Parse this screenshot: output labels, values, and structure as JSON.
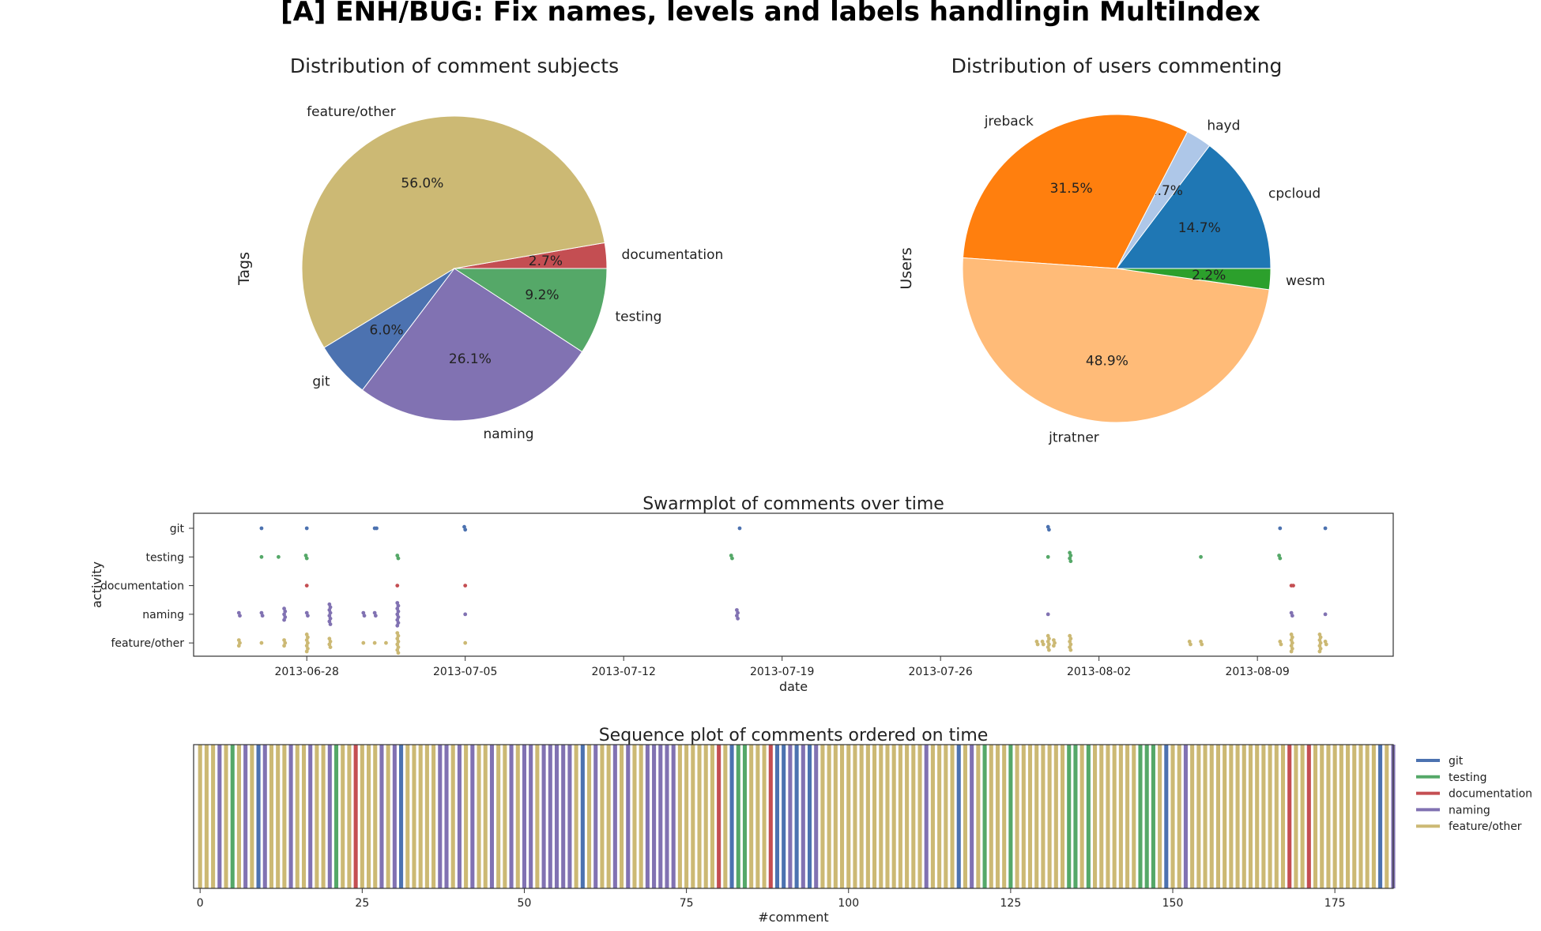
{
  "figure_title": "[A] ENH/BUG: Fix names, levels and labels handlingin MultiIndex",
  "chart_data": [
    {
      "type": "pie",
      "title": "Distribution of comment subjects",
      "ylabel": "Tags",
      "start_angle_deg": 0,
      "slices": [
        {
          "label": "documentation",
          "value": 2.7,
          "pct_label": "2.7%",
          "color": "#c44e52"
        },
        {
          "label": "feature/other",
          "value": 56.0,
          "pct_label": "56.0%",
          "color": "#ccb974"
        },
        {
          "label": "git",
          "value": 6.0,
          "pct_label": "6.0%",
          "color": "#4c72b0"
        },
        {
          "label": "naming",
          "value": 26.1,
          "pct_label": "26.1%",
          "color": "#8172b2"
        },
        {
          "label": "testing",
          "value": 9.2,
          "pct_label": "9.2%",
          "color": "#55a868"
        }
      ]
    },
    {
      "type": "pie",
      "title": "Distribution of users commenting",
      "ylabel": "Users",
      "start_angle_deg": 0,
      "slices": [
        {
          "label": "cpcloud",
          "value": 14.7,
          "pct_label": "14.7%",
          "color": "#1f77b4"
        },
        {
          "label": "hayd",
          "value": 2.7,
          "pct_label": "2.7%",
          "color": "#aec7e8"
        },
        {
          "label": "jreback",
          "value": 31.5,
          "pct_label": "31.5%",
          "color": "#ff7f0e"
        },
        {
          "label": "jtratner",
          "value": 48.9,
          "pct_label": "48.9%",
          "color": "#ffbb78"
        },
        {
          "label": "wesm",
          "value": 2.2,
          "pct_label": "2.2%",
          "color": "#2ca02c"
        }
      ]
    },
    {
      "type": "scatter",
      "title": "Swarmplot of comments over time",
      "xlabel": "date",
      "ylabel": "activity",
      "categories": [
        "git",
        "testing",
        "documentation",
        "naming",
        "feature/other"
      ],
      "colors": {
        "git": "#4c72b0",
        "testing": "#55a868",
        "documentation": "#c44e52",
        "naming": "#8172b2",
        "feature/other": "#ccb974"
      },
      "xlim": [
        "2013-06-23",
        "2013-08-15"
      ],
      "xticks": [
        "2013-06-28",
        "2013-07-05",
        "2013-07-12",
        "2013-07-19",
        "2013-07-26",
        "2013-08-02",
        "2013-08-09"
      ],
      "points": {
        "git": [
          "2013-06-26T00:00",
          "2013-06-28T00:00",
          "2013-07-01T00:00",
          "2013-07-01T02:00",
          "2013-07-04T23:00",
          "2013-07-04T23:00",
          "2013-07-17T03:00",
          "2013-07-30T18:00",
          "2013-07-30T18:00",
          "2013-08-10T00:00",
          "2013-08-12T00:00"
        ],
        "testing": [
          "2013-06-26T00:00",
          "2013-06-26T18:00",
          "2013-06-27T23:00",
          "2013-06-27T23:00",
          "2013-07-02T00:00",
          "2013-07-02T00:00",
          "2013-07-16T18:00",
          "2013-07-16T18:00",
          "2013-07-30T18:00",
          "2013-07-31T17:00",
          "2013-07-31T17:00",
          "2013-07-31T17:00",
          "2013-07-31T17:00",
          "2013-08-06T12:00",
          "2013-08-09T23:00",
          "2013-08-09T23:00"
        ],
        "documentation": [
          "2013-06-28T00:00",
          "2013-07-02T00:00",
          "2013-07-05T00:00",
          "2013-08-10T12:00",
          "2013-08-10T14:00"
        ],
        "naming": [
          "2013-06-25T00:00",
          "2013-06-25T00:00",
          "2013-06-26T00:00",
          "2013-06-26T00:00",
          "2013-06-27T00:00",
          "2013-06-27T00:00",
          "2013-06-27T00:00",
          "2013-06-27T00:00",
          "2013-06-27T00:00",
          "2013-06-28T00:00",
          "2013-06-28T00:00",
          "2013-06-29T00:00",
          "2013-06-29T00:00",
          "2013-06-29T00:00",
          "2013-06-29T00:00",
          "2013-06-29T00:00",
          "2013-06-29T00:00",
          "2013-06-29T00:00",
          "2013-06-29T00:00",
          "2013-06-30T12:00",
          "2013-06-30T12:00",
          "2013-07-01T00:00",
          "2013-07-01T00:00",
          "2013-07-02T00:00",
          "2013-07-02T00:00",
          "2013-07-02T00:00",
          "2013-07-02T00:00",
          "2013-07-02T00:00",
          "2013-07-02T00:00",
          "2013-07-02T00:00",
          "2013-07-02T00:00",
          "2013-07-02T00:00",
          "2013-07-05T00:00",
          "2013-07-17T00:00",
          "2013-07-17T00:00",
          "2013-07-17T00:00",
          "2013-07-17T00:00",
          "2013-07-30T18:00",
          "2013-08-10T12:00",
          "2013-08-10T12:00",
          "2013-08-12T00:00"
        ],
        "feature/other": [
          "2013-06-25T00:00",
          "2013-06-25T00:00",
          "2013-06-25T00:00",
          "2013-06-26T00:00",
          "2013-06-27T00:00",
          "2013-06-27T00:00",
          "2013-06-27T00:00",
          "2013-06-28T00:00",
          "2013-06-28T00:00",
          "2013-06-28T00:00",
          "2013-06-28T00:00",
          "2013-06-28T00:00",
          "2013-06-28T00:00",
          "2013-06-28T00:00",
          "2013-06-29T00:00",
          "2013-06-29T00:00",
          "2013-06-29T00:00",
          "2013-06-29T00:00",
          "2013-06-30T12:00",
          "2013-07-01T00:00",
          "2013-07-01T12:00",
          "2013-07-02T00:00",
          "2013-07-02T00:00",
          "2013-07-02T00:00",
          "2013-07-02T00:00",
          "2013-07-02T00:00",
          "2013-07-02T00:00",
          "2013-07-02T00:00",
          "2013-07-02T00:00",
          "2013-07-05T00:00",
          "2013-07-30T06:00",
          "2013-07-30T06:00",
          "2013-07-30T12:00",
          "2013-07-30T12:00",
          "2013-07-30T18:00",
          "2013-07-30T18:00",
          "2013-07-30T18:00",
          "2013-07-30T18:00",
          "2013-07-30T18:00",
          "2013-07-30T18:00",
          "2013-07-31T00:00",
          "2013-07-31T00:00",
          "2013-07-31T00:00",
          "2013-07-31T17:00",
          "2013-07-31T17:00",
          "2013-07-31T17:00",
          "2013-07-31T17:00",
          "2013-07-31T17:00",
          "2013-07-31T17:00",
          "2013-08-06T00:00",
          "2013-08-06T00:00",
          "2013-08-06T12:00",
          "2013-08-06T12:00",
          "2013-08-10T00:00",
          "2013-08-10T00:00",
          "2013-08-10T12:00",
          "2013-08-10T12:00",
          "2013-08-10T12:00",
          "2013-08-10T12:00",
          "2013-08-10T12:00",
          "2013-08-10T12:00",
          "2013-08-10T12:00",
          "2013-08-11T18:00",
          "2013-08-11T18:00",
          "2013-08-11T18:00",
          "2013-08-11T18:00",
          "2013-08-11T18:00",
          "2013-08-11T18:00",
          "2013-08-11T18:00",
          "2013-08-12T00:00",
          "2013-08-12T00:00"
        ]
      }
    },
    {
      "type": "bar",
      "title": "Sequence plot of comments ordered on time",
      "xlabel": "#comment",
      "xlim": [
        -1,
        184
      ],
      "xticks": [
        0,
        25,
        50,
        75,
        100,
        125,
        150,
        175
      ],
      "legend_position": "outside right, top",
      "categories": [
        "git",
        "testing",
        "documentation",
        "naming",
        "feature/other"
      ],
      "colors": {
        "git": "#4c72b0",
        "testing": "#55a868",
        "documentation": "#c44e52",
        "naming": "#8172b2",
        "feature/other": "#ccb974"
      },
      "sequence": [
        "feature/other",
        "feature/other",
        "feature/other",
        "naming",
        "feature/other",
        "testing",
        "feature/other",
        "naming",
        "feature/other",
        "git",
        "naming",
        "feature/other",
        "feature/other",
        "feature/other",
        "naming",
        "feature/other",
        "feature/other",
        "naming",
        "feature/other",
        "feature/other",
        "naming",
        "testing",
        "feature/other",
        "feature/other",
        "documentation",
        "feature/other",
        "feature/other",
        "feature/other",
        "naming",
        "feature/other",
        "naming",
        "git",
        "feature/other",
        "feature/other",
        "feature/other",
        "feature/other",
        "feature/other",
        "naming",
        "naming",
        "feature/other",
        "naming",
        "feature/other",
        "naming",
        "feature/other",
        "feature/other",
        "naming",
        "feature/other",
        "feature/other",
        "naming",
        "feature/other",
        "naming",
        "naming",
        "feature/other",
        "naming",
        "naming",
        "naming",
        "naming",
        "naming",
        "feature/other",
        "git",
        "feature/other",
        "naming",
        "feature/other",
        "feature/other",
        "naming",
        "feature/other",
        "naming",
        "feature/other",
        "feature/other",
        "naming",
        "naming",
        "naming",
        "naming",
        "naming",
        "feature/other",
        "feature/other",
        "feature/other",
        "feature/other",
        "feature/other",
        "feature/other",
        "documentation",
        "feature/other",
        "git",
        "testing",
        "testing",
        "feature/other",
        "feature/other",
        "feature/other",
        "documentation",
        "git",
        "git",
        "naming",
        "git",
        "naming",
        "git",
        "naming",
        "feature/other",
        "feature/other",
        "feature/other",
        "feature/other",
        "feature/other",
        "feature/other",
        "feature/other",
        "feature/other",
        "feature/other",
        "feature/other",
        "feature/other",
        "feature/other",
        "feature/other",
        "feature/other",
        "feature/other",
        "feature/other",
        "naming",
        "feature/other",
        "feature/other",
        "feature/other",
        "feature/other",
        "git",
        "feature/other",
        "naming",
        "feature/other",
        "testing",
        "feature/other",
        "feature/other",
        "feature/other",
        "testing",
        "feature/other",
        "feature/other",
        "feature/other",
        "feature/other",
        "feature/other",
        "feature/other",
        "feature/other",
        "feature/other",
        "testing",
        "testing",
        "feature/other",
        "testing",
        "feature/other",
        "feature/other",
        "feature/other",
        "feature/other",
        "feature/other",
        "feature/other",
        "feature/other",
        "testing",
        "testing",
        "testing",
        "feature/other",
        "git",
        "feature/other",
        "feature/other",
        "naming",
        "feature/other",
        "feature/other",
        "feature/other",
        "feature/other",
        "feature/other",
        "feature/other",
        "feature/other",
        "feature/other",
        "feature/other",
        "feature/other",
        "feature/other",
        "feature/other",
        "feature/other",
        "feature/other",
        "feature/other",
        "documentation",
        "feature/other",
        "feature/other",
        "documentation",
        "feature/other",
        "feature/other",
        "feature/other",
        "feature/other",
        "feature/other",
        "feature/other",
        "feature/other",
        "feature/other",
        "feature/other",
        "feature/other",
        "git",
        "feature/other",
        "naming"
      ]
    }
  ]
}
